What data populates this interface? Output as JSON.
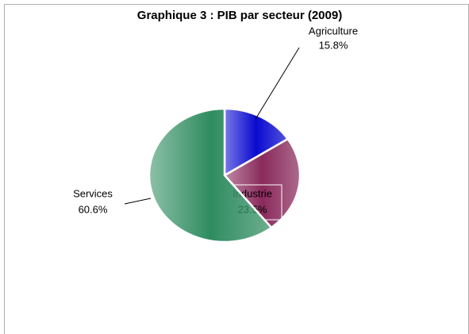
{
  "chart_data": {
    "type": "pie",
    "title": "Graphique 3 : PIB par secteur  (2009)",
    "categories": [
      "Agriculture",
      "Industrie",
      "Services"
    ],
    "values": [
      15.8,
      23.5,
      60.6
    ],
    "value_labels": [
      "15.8%",
      "23.5%",
      "60.6%"
    ],
    "colors": [
      "#0a0ad0",
      "#8a2a5c",
      "#2f8c60"
    ]
  }
}
